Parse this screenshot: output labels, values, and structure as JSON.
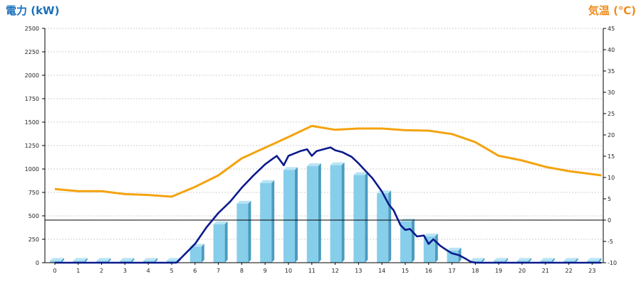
{
  "chart_data": {
    "type": "bar",
    "left_axis_label": "電力 (kW)",
    "right_axis_label": "気温 (℃)",
    "colors": {
      "left_axis_label": "#1a6fba",
      "right_axis_label": "#f08c1a",
      "bars_front": "#87ceeb",
      "bars_side": "#4a9bbf",
      "bars_top": "#b8e4f5",
      "power_line": "#0b1a8c",
      "temperature_line": "#f4a30f",
      "grid": "#cfcfcf"
    },
    "categories": [
      "0",
      "1",
      "2",
      "3",
      "4",
      "5",
      "6",
      "7",
      "8",
      "9",
      "10",
      "11",
      "12",
      "13",
      "14",
      "15",
      "16",
      "17",
      "18",
      "19",
      "20",
      "21",
      "22",
      "23"
    ],
    "y_left_ticks": [
      "0",
      "250",
      "500",
      "750",
      "1000",
      "1250",
      "1500",
      "1750",
      "2000",
      "2250",
      "2500"
    ],
    "y_right_ticks": [
      "-10",
      "-5",
      "0",
      "5",
      "10",
      "15",
      "20",
      "25",
      "30",
      "35",
      "40",
      "45"
    ],
    "ylim_left": [
      0,
      2500
    ],
    "ylim_right": [
      -10,
      45
    ],
    "series": [
      {
        "kind": "bar",
        "values": [
          20,
          20,
          20,
          20,
          20,
          20,
          170,
          410,
          630,
          850,
          990,
          1030,
          1040,
          935,
          740,
          440,
          280,
          130,
          20,
          20,
          20,
          20,
          20,
          20
        ]
      },
      {
        "kind": "line",
        "axis": "left",
        "x": [
          0,
          5.2,
          6,
          6.5,
          7,
          7.5,
          8,
          8.5,
          9,
          9.5,
          9.8,
          10,
          10.3,
          10.5,
          10.8,
          11,
          11.2,
          11.5,
          11.8,
          12,
          12.3,
          12.7,
          13,
          13.3,
          13.6,
          14,
          14.3,
          14.5,
          14.8,
          15,
          15.2,
          15.5,
          15.8,
          16,
          16.2,
          16.5,
          16.8,
          17,
          17.3,
          17.6,
          17.8,
          18,
          23.4
        ],
        "y": [
          0,
          0,
          200,
          380,
          530,
          650,
          800,
          930,
          1050,
          1140,
          1040,
          1140,
          1170,
          1190,
          1210,
          1140,
          1190,
          1210,
          1230,
          1200,
          1180,
          1130,
          1060,
          980,
          900,
          760,
          620,
          560,
          400,
          350,
          360,
          280,
          290,
          200,
          250,
          180,
          130,
          100,
          80,
          40,
          10,
          0,
          0
        ]
      },
      {
        "kind": "line",
        "axis": "right",
        "x": [
          0,
          1,
          2,
          3,
          4,
          5,
          6,
          7,
          8,
          9,
          10,
          11,
          12,
          13,
          14,
          15,
          16,
          17,
          18,
          19,
          20,
          21,
          22,
          23.4
        ],
        "y": [
          7.3,
          6.8,
          6.8,
          6.1,
          5.9,
          5.5,
          7.8,
          10.5,
          14.5,
          17,
          19.5,
          22.1,
          21.2,
          21.5,
          21.5,
          21.1,
          21,
          20.2,
          18.3,
          15.1,
          14,
          12.5,
          11.5,
          10.5
        ]
      }
    ]
  }
}
